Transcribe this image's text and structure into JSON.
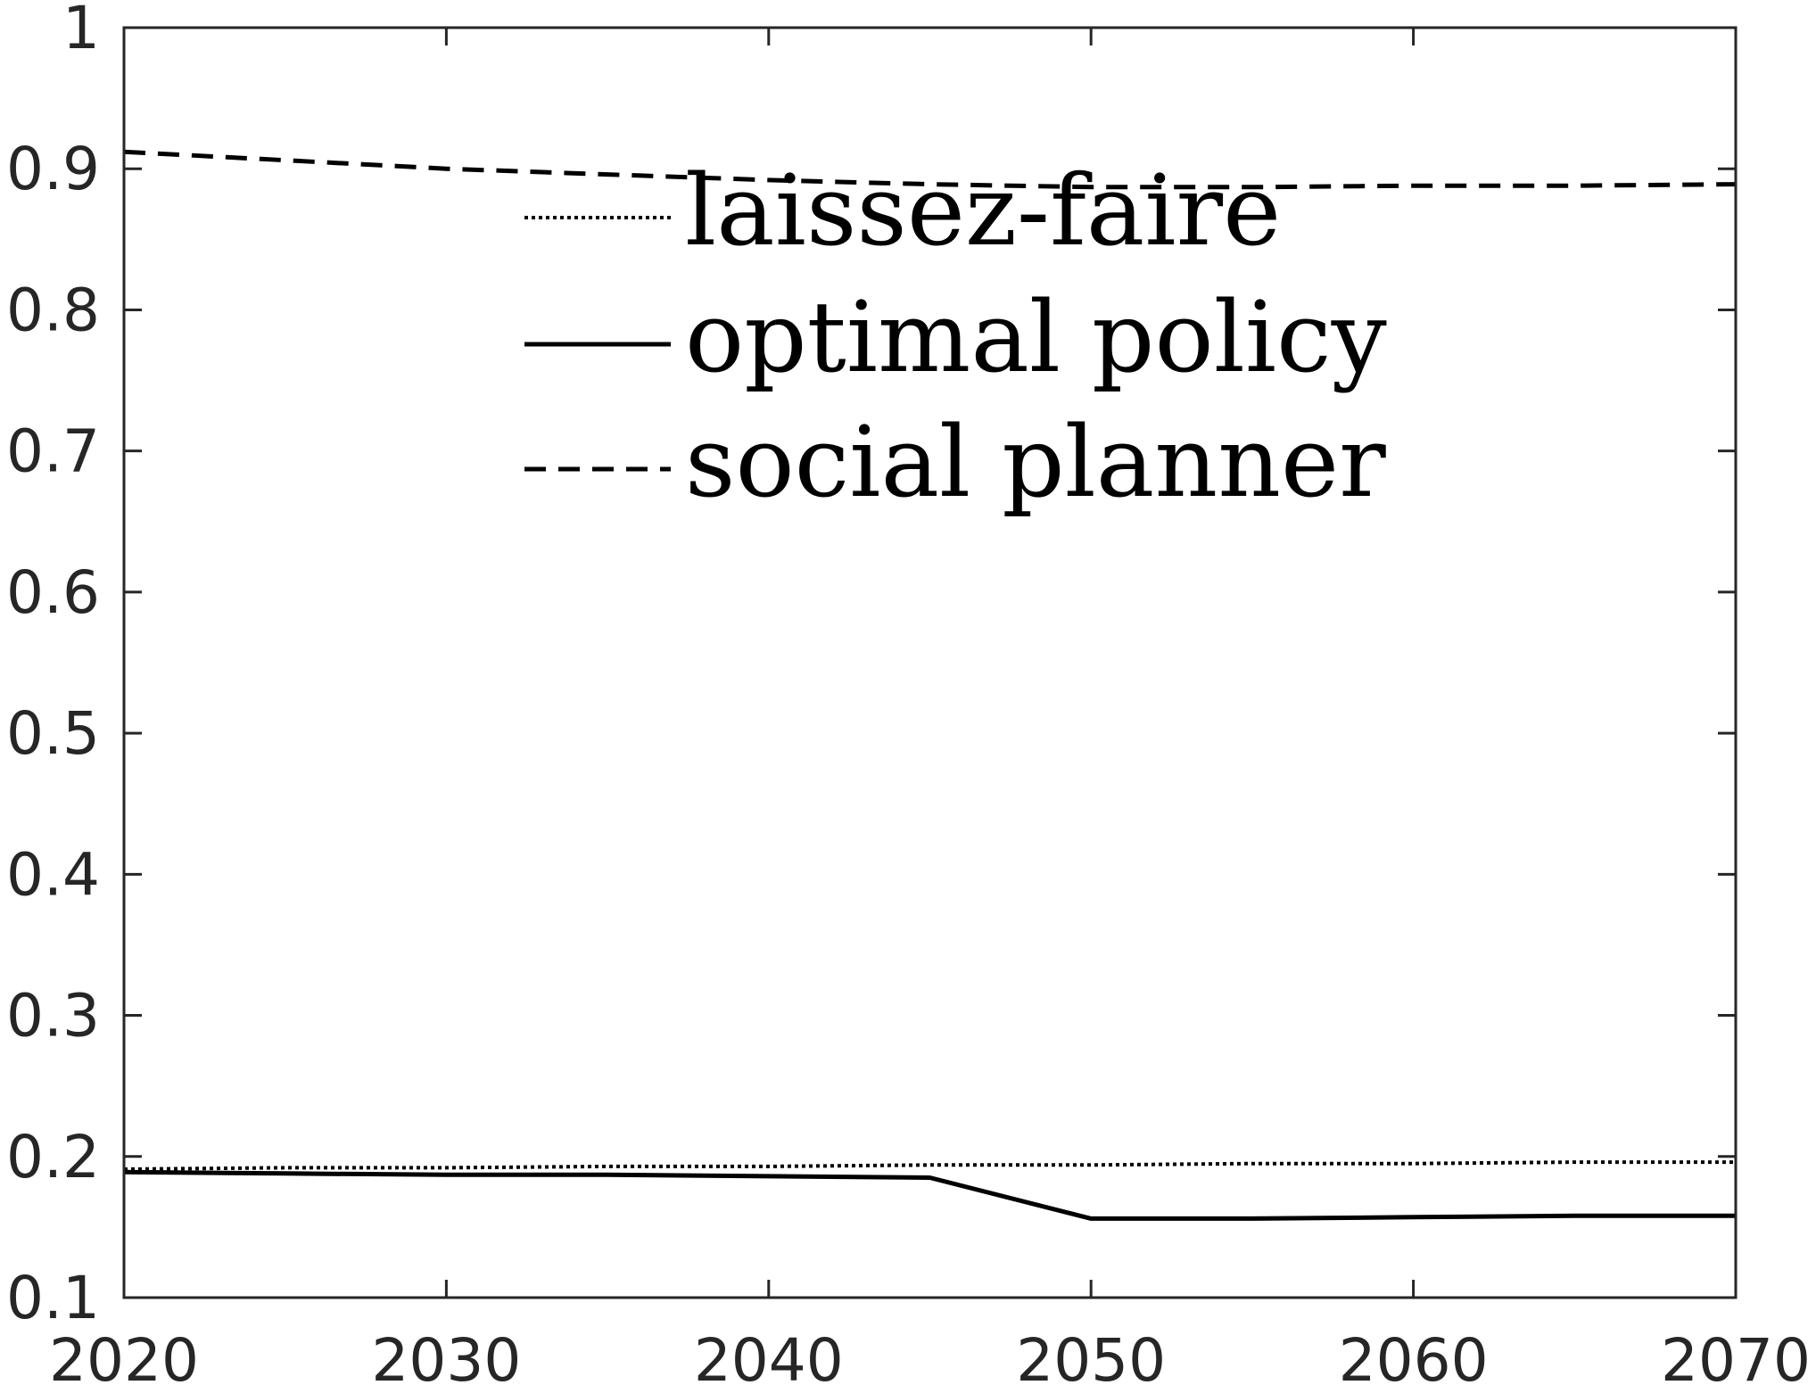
{
  "chart_data": {
    "type": "line",
    "title": "",
    "xlabel": "",
    "ylabel": "",
    "xlim": [
      2020,
      2070
    ],
    "ylim": [
      0.1,
      1
    ],
    "xticks": [
      "2020",
      "2030",
      "2040",
      "2050",
      "2060",
      "2070"
    ],
    "yticks": [
      "0.1",
      "0.2",
      "0.3",
      "0.4",
      "0.5",
      "0.6",
      "0.7",
      "0.8",
      "0.9",
      "1"
    ],
    "grid": false,
    "legend_position": "top-center",
    "colors": {
      "axis": "#262626",
      "series": "#000000"
    },
    "series": [
      {
        "name": "laissez-faire",
        "style": "dotted",
        "x": [
          2020,
          2025,
          2030,
          2035,
          2040,
          2045,
          2050,
          2055,
          2060,
          2065,
          2070
        ],
        "y": [
          0.191,
          0.192,
          0.192,
          0.193,
          0.193,
          0.194,
          0.194,
          0.195,
          0.195,
          0.196,
          0.196
        ]
      },
      {
        "name": "optimal policy",
        "style": "solid",
        "x": [
          2020,
          2025,
          2030,
          2035,
          2040,
          2045,
          2050,
          2055,
          2060,
          2065,
          2070
        ],
        "y": [
          0.189,
          0.188,
          0.187,
          0.187,
          0.186,
          0.185,
          0.156,
          0.156,
          0.157,
          0.158,
          0.158
        ]
      },
      {
        "name": "social planner",
        "style": "dashed",
        "x": [
          2020,
          2025,
          2030,
          2035,
          2040,
          2045,
          2050,
          2055,
          2060,
          2065,
          2070
        ],
        "y": [
          0.912,
          0.906,
          0.9,
          0.896,
          0.892,
          0.889,
          0.887,
          0.887,
          0.888,
          0.888,
          0.889
        ]
      }
    ]
  }
}
